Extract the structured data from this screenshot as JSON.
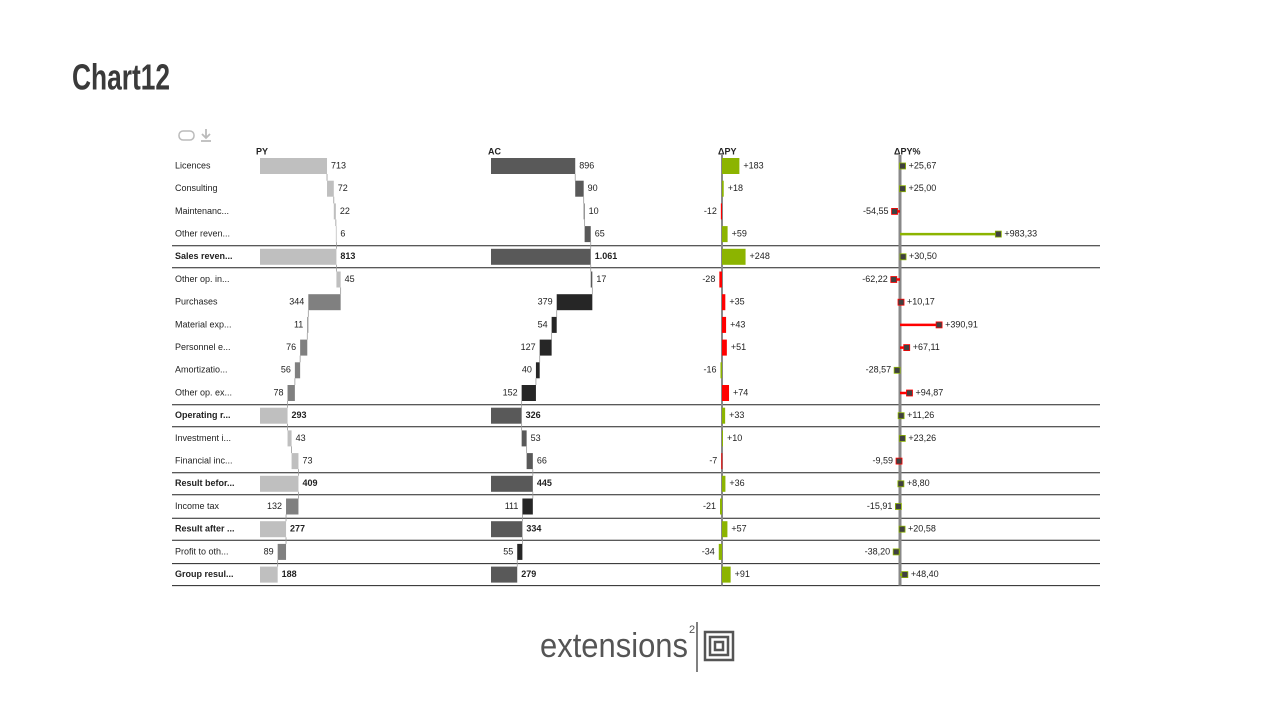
{
  "chart_data": {
    "type": "variance-waterfall",
    "title": "Chart12",
    "categories": [
      "Licences",
      "Consulting",
      "Maintenanc...",
      "Other reven...",
      "Sales reven...",
      "Other op. in...",
      "Purchases",
      "Material exp...",
      "Personnel e...",
      "Amortizatio...",
      "Other op. ex...",
      "Operating r...",
      "Investment i...",
      "Financial inc...",
      "Result befor...",
      "Income tax",
      "Result after ...",
      "Profit to oth...",
      "Group resul..."
    ],
    "row_types": [
      "plus",
      "plus",
      "plus",
      "plus",
      "total",
      "plus",
      "sub",
      "sub",
      "sub",
      "sub",
      "sub",
      "total",
      "plus",
      "plus",
      "total",
      "sub",
      "total",
      "sub",
      "total"
    ],
    "series": [
      {
        "name": "PY",
        "color": "#bfbfbf",
        "color_sub": "#808080",
        "values": [
          713,
          72,
          22,
          6,
          813,
          45,
          344,
          11,
          76,
          56,
          78,
          293,
          43,
          73,
          409,
          132,
          277,
          89,
          188
        ]
      },
      {
        "name": "AC",
        "color": "#595959",
        "color_sub": "#262626",
        "values": [
          896,
          90,
          10,
          65,
          1061,
          17,
          379,
          54,
          127,
          40,
          152,
          326,
          53,
          66,
          445,
          111,
          334,
          55,
          279
        ],
        "value_labels": [
          "896",
          "90",
          "10",
          "65",
          "1.061",
          "17",
          "379",
          "54",
          "127",
          "40",
          "152",
          "326",
          "53",
          "66",
          "445",
          "111",
          "334",
          "55",
          "279"
        ]
      },
      {
        "name": "ΔPY",
        "color": "#8cb400",
        "color_bad": "#ff0000",
        "values": [
          183,
          18,
          -12,
          59,
          248,
          -28,
          35,
          43,
          51,
          -16,
          74,
          33,
          10,
          -7,
          36,
          -21,
          57,
          -34,
          91
        ],
        "value_labels": [
          "+183",
          "+18",
          "-12",
          "+59",
          "+248",
          "-28",
          "+35",
          "+43",
          "+51",
          "-16",
          "+74",
          "+33",
          "+10",
          "-7",
          "+36",
          "-21",
          "+57",
          "-34",
          "+91"
        ]
      },
      {
        "name": "ΔPY%",
        "color": "#8cb400",
        "color_bad": "#ff0000",
        "values": [
          25.67,
          25.0,
          -54.55,
          983.33,
          30.5,
          -62.22,
          10.17,
          390.91,
          67.11,
          -28.57,
          94.87,
          11.26,
          23.26,
          -9.59,
          8.8,
          -15.91,
          20.58,
          -38.2,
          48.4
        ],
        "value_labels": [
          "+25,67",
          "+25,00",
          "-54,55",
          "+983,33",
          "+30,50",
          "-62,22",
          "+10,17",
          "+390,91",
          "+67,11",
          "-28,57",
          "+94,87",
          "+11,26",
          "+23,26",
          "-9,59",
          "+8,80",
          "-15,91",
          "+20,58",
          "-38,20",
          "+48,40"
        ]
      }
    ]
  },
  "footer": {
    "brand": "extensions",
    "superscript": "2"
  }
}
